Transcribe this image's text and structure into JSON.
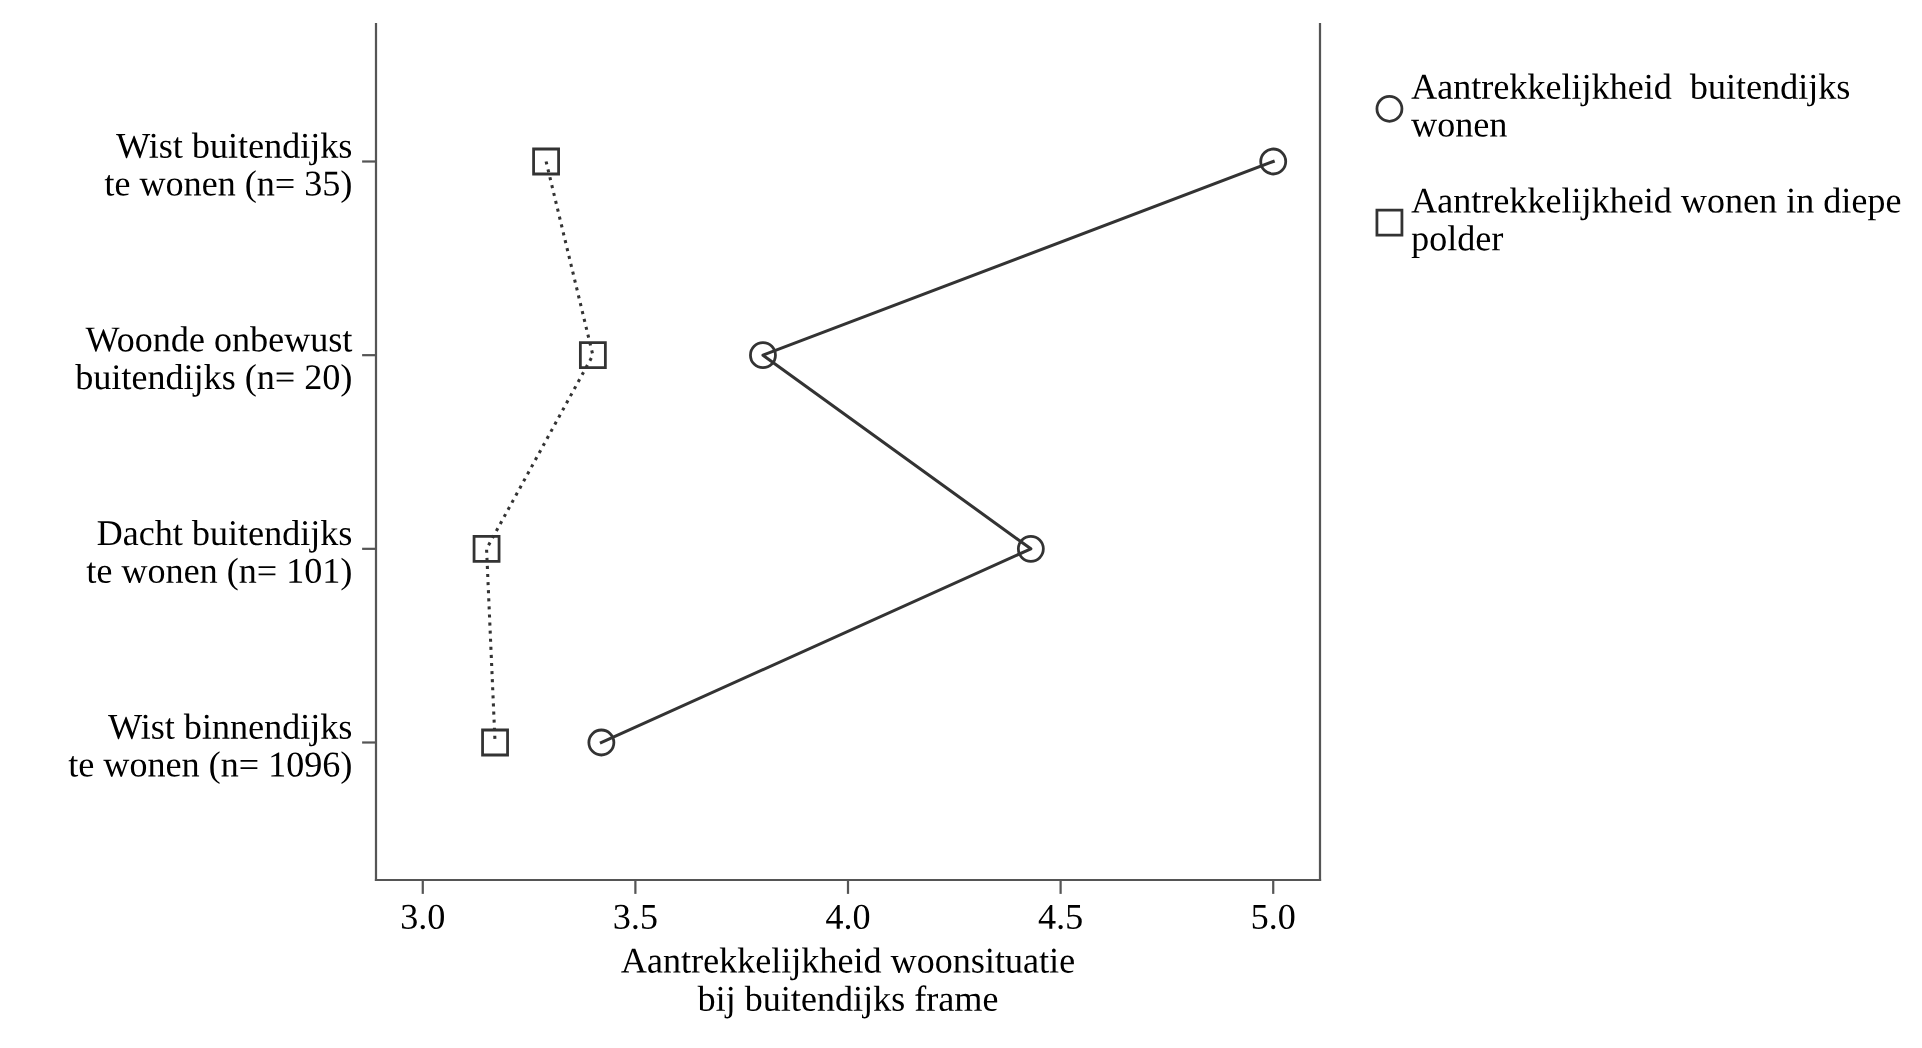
{
  "chart_data": {
    "type": "line",
    "orientation": "horizontal",
    "xlabel": "Aantrekkelijkheid woonsituatie\nbij buitendijks frame",
    "categories": [
      "Wist buitendijks\nte wonen (n= 35)",
      "Woonde onbewust\nbuitendijks (n= 20)",
      "Dacht buitendijks\nte wonen (n= 101)",
      "Wist binnendijks\nte wonen (n= 1096)"
    ],
    "series": [
      {
        "name": "Aantrekkelijkheid  buitendijks\nwonen",
        "color": "#333333",
        "marker": "circle",
        "line_style": "solid",
        "values": [
          5.0,
          3.8,
          4.43,
          3.42
        ]
      },
      {
        "name": "Aantrekkelijkheid wonen in diepe\npolder",
        "color": "#333333",
        "marker": "square",
        "line_style": "dotted",
        "values": [
          3.29,
          3.4,
          3.15,
          3.17
        ]
      }
    ],
    "xlim": [
      2.89,
      5.11
    ],
    "xticks": [
      {
        "value": 3,
        "label": "3.0"
      },
      3.5,
      {
        "value": 4,
        "label": "4.0"
      },
      4.5,
      {
        "value": 5,
        "label": "5.0"
      }
    ],
    "grid": false,
    "legend": "right"
  }
}
